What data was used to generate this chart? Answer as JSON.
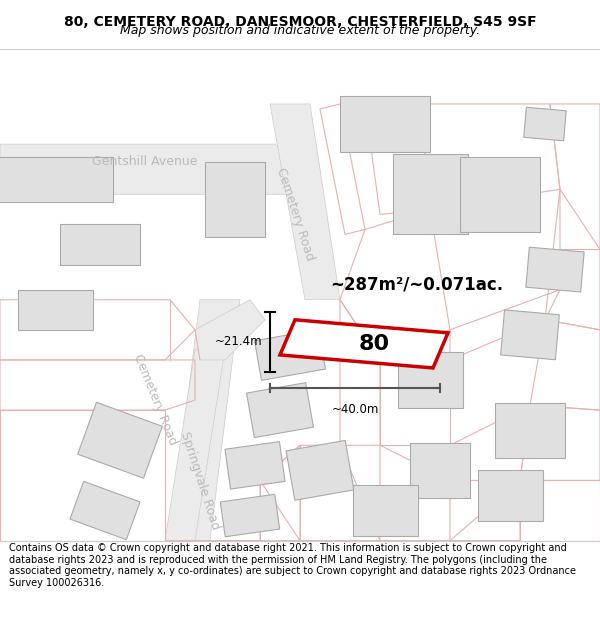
{
  "title_line1": "80, CEMETERY ROAD, DANESMOOR, CHESTERFIELD, S45 9SF",
  "title_line2": "Map shows position and indicative extent of the property.",
  "footer_text": "Contains OS data © Crown copyright and database right 2021. This information is subject to Crown copyright and database rights 2023 and is reproduced with the permission of HM Land Registry. The polygons (including the associated geometry, namely x, y co-ordinates) are subject to Crown copyright and database rights 2023 Ordnance Survey 100026316.",
  "area_label": "~287m²/~0.071ac.",
  "plot_number": "80",
  "width_label": "~40.0m",
  "height_label": "~21.4m",
  "plot_color": "#cc0000",
  "road_line_color": "#e8b0b0",
  "road_fill_color": "#f5f5f5",
  "road_edge_color": "#cccccc",
  "building_fill": "#e0e0e0",
  "building_edge": "#aaaaaa",
  "road_label_color": "#bbbbbb",
  "title_fontsize": 10,
  "subtitle_fontsize": 9,
  "footer_fontsize": 7,
  "map_bg": "#fafafa"
}
